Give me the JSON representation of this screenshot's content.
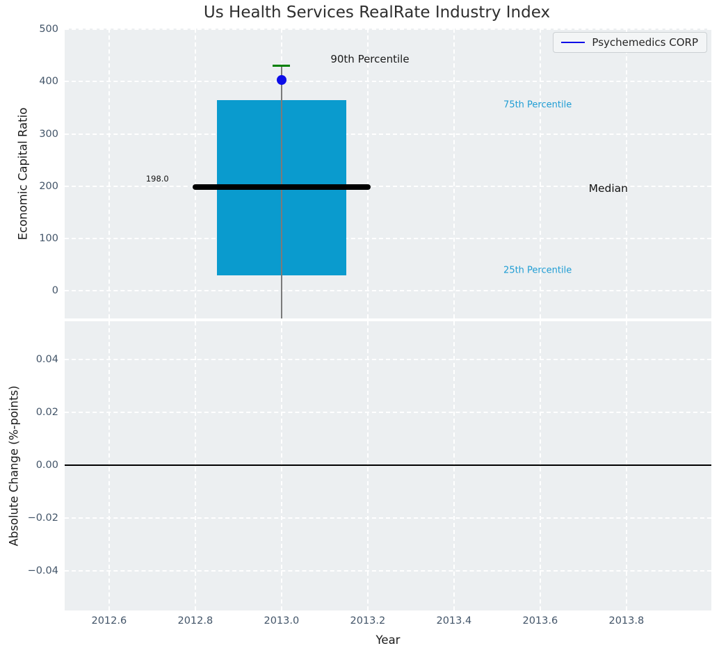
{
  "title": "Us Health Services RealRate Industry Index",
  "legend": {
    "label": "Psychemedics CORP",
    "line_color": "#0d0de8",
    "position": "upper right"
  },
  "colors": {
    "axes_background": "#eceff1",
    "grid": "#ffffff",
    "bar": "#0a9bce",
    "company": "#0d0de8",
    "cap": "#008000",
    "median": "#000000",
    "whisker": "#7a7a7a",
    "tick_label": "#425468",
    "percentile_label": "#1f9dd4"
  },
  "chart_data": [
    {
      "type": "bar",
      "subplot": "economic-capital-ratio",
      "title": "Us Health Services RealRate Industry Index",
      "ylabel": "Economic Capital Ratio",
      "x": 2013.0,
      "percentiles": {
        "p25": 30,
        "median": 198.0,
        "p75": 364,
        "p90": 430
      },
      "median_value_label": "198.0",
      "company_point": {
        "name": "Psychemedics CORP",
        "x": 2013.0,
        "y": 403
      },
      "bar_x_range": [
        2012.85,
        2013.15
      ],
      "median_x_range": [
        2012.8,
        2013.2
      ],
      "whisker_extends_below_axis": true,
      "cap_half_width": 0.02,
      "xlim": [
        2012.497,
        2013.997
      ],
      "ylim": [
        -52.5,
        501.5
      ],
      "grid": true,
      "yticks": [
        {
          "label": "0",
          "value": 0
        },
        {
          "label": "100",
          "value": 100
        },
        {
          "label": "200",
          "value": 200
        },
        {
          "label": "300",
          "value": 300
        },
        {
          "label": "400",
          "value": 400
        },
        {
          "label": "500",
          "value": 500
        }
      ],
      "annotations": [
        {
          "id": "90th-percentile",
          "text": "90th Percentile",
          "x": 2013.205,
          "y": 443,
          "color": "#1a1a1a",
          "size": 15
        },
        {
          "id": "75th-percentile",
          "text": "75th Percentile",
          "x": 2013.594,
          "y": 355,
          "color": "#1f9dd4",
          "size": 13
        },
        {
          "id": "median",
          "text": "Median",
          "x": 2013.758,
          "y": 196,
          "color": "#111111",
          "size": 15.5
        },
        {
          "id": "25th-percentile",
          "text": "25th Percentile",
          "x": 2013.594,
          "y": 39,
          "color": "#1f9dd4",
          "size": 13
        },
        {
          "id": "median-value",
          "text": "198.0",
          "x": 2012.712,
          "y": 214,
          "color": "#111111",
          "size": 11.5
        }
      ]
    },
    {
      "type": "line",
      "subplot": "absolute-change",
      "ylabel": "Absolute Change (%-points)",
      "xlabel": "Year",
      "zero_line_y": 0.0,
      "xlim": [
        2012.497,
        2013.997
      ],
      "ylim": [
        -0.0549,
        0.0546
      ],
      "grid": true,
      "yticks": [
        {
          "label": "0.04",
          "value": 0.04
        },
        {
          "label": "0.02",
          "value": 0.02
        },
        {
          "label": "0.00",
          "value": 0
        },
        {
          "label": "−0.02",
          "value": -0.02
        },
        {
          "label": "−0.04",
          "value": -0.04
        }
      ],
      "xticks": [
        {
          "label": "2012.6",
          "value": 2012.6
        },
        {
          "label": "2012.8",
          "value": 2012.8
        },
        {
          "label": "2013.0",
          "value": 2013.0
        },
        {
          "label": "2013.2",
          "value": 2013.2
        },
        {
          "label": "2013.4",
          "value": 2013.4
        },
        {
          "label": "2013.6",
          "value": 2013.6
        },
        {
          "label": "2013.8",
          "value": 2013.8
        }
      ]
    }
  ]
}
